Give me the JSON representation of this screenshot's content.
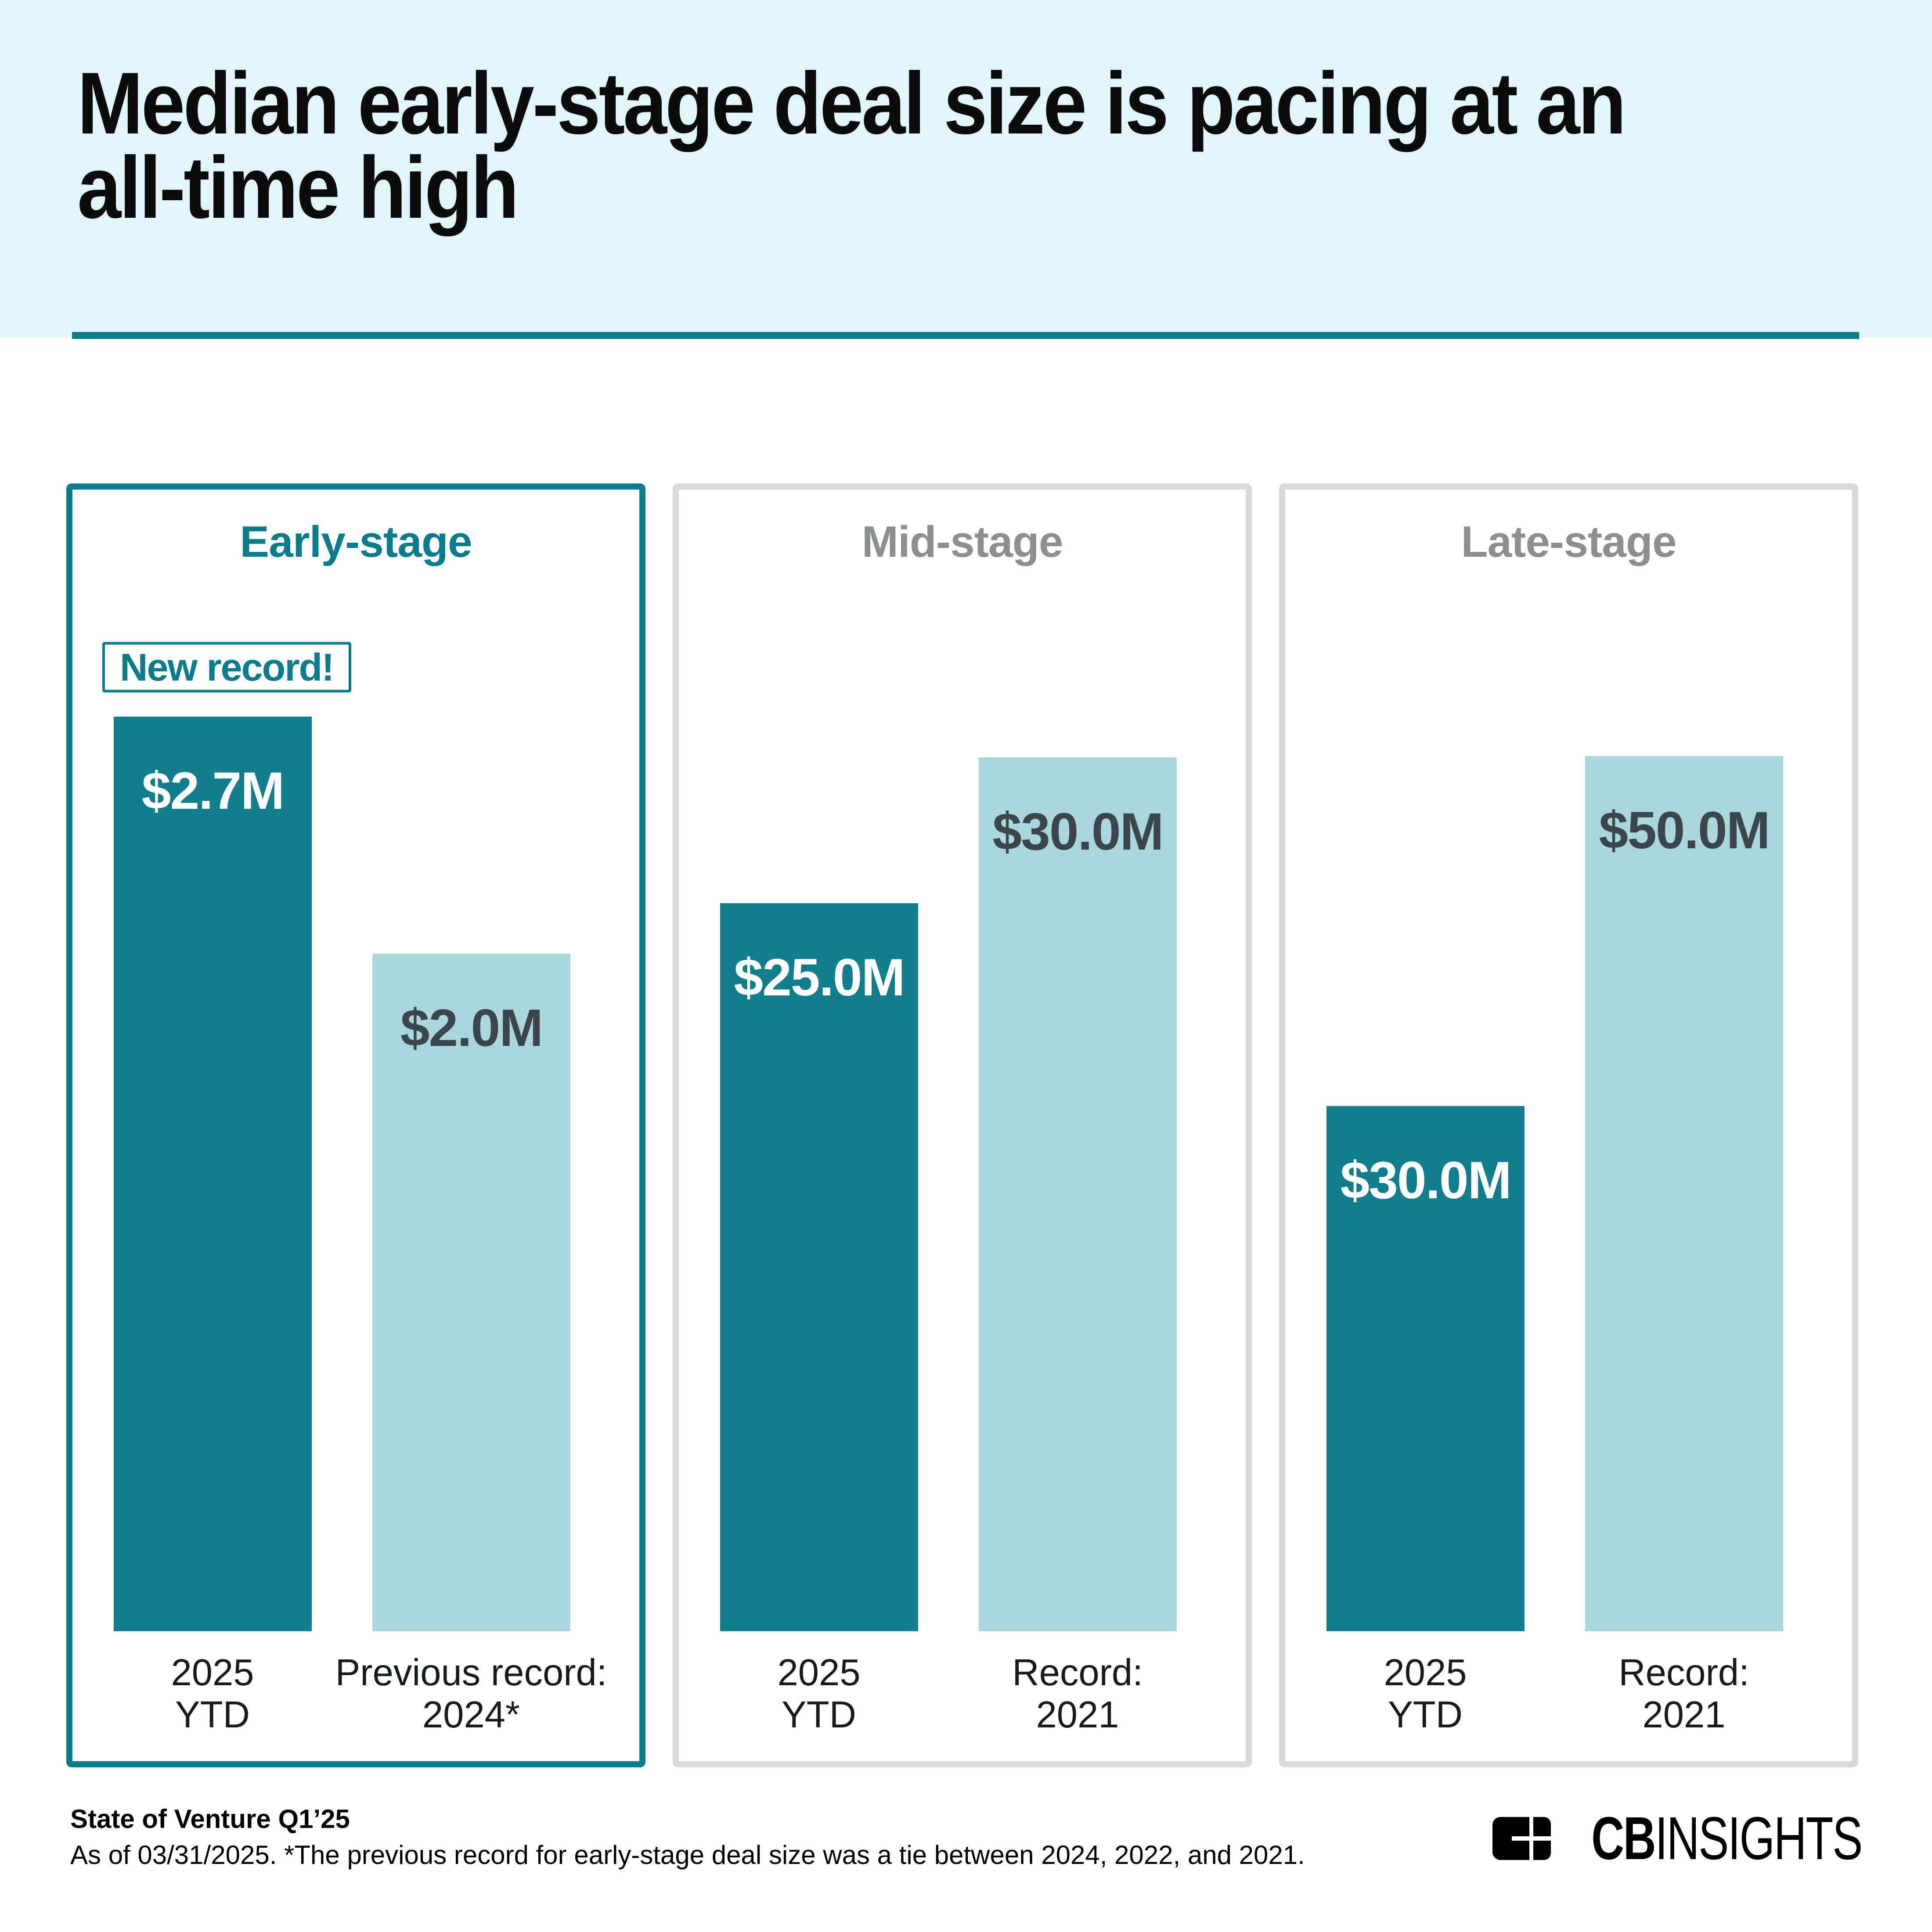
{
  "header": {
    "title": "Median early-stage deal size is pacing at an all-time high",
    "title_line1": "Median early-stage deal size is pacing at an",
    "title_line2": "all-time high"
  },
  "panels": [
    {
      "title": "Early-stage",
      "highlighted": true,
      "badge": "New record!",
      "bars": [
        {
          "value": 2.7,
          "value_label": "$2.7M",
          "variant": "dark",
          "axis_line1": "2025",
          "axis_line2": "YTD"
        },
        {
          "value": 2.0,
          "value_label": "$2.0M",
          "variant": "light",
          "axis_line1": "Previous record:",
          "axis_line2": "2024*"
        }
      ]
    },
    {
      "title": "Mid-stage",
      "highlighted": false,
      "badge": "",
      "bars": [
        {
          "value": 25.0,
          "value_label": "$25.0M",
          "variant": "dark",
          "axis_line1": "2025",
          "axis_line2": "YTD"
        },
        {
          "value": 30.0,
          "value_label": "$30.0M",
          "variant": "light",
          "axis_line1": "Record:",
          "axis_line2": "2021"
        }
      ]
    },
    {
      "title": "Late-stage",
      "highlighted": false,
      "badge": "",
      "bars": [
        {
          "value": 30.0,
          "value_label": "$30.0M",
          "variant": "dark",
          "axis_line1": "2025",
          "axis_line2": "YTD"
        },
        {
          "value": 50.0,
          "value_label": "$50.0M",
          "variant": "light",
          "axis_line1": "Record:",
          "axis_line2": "2021"
        }
      ]
    }
  ],
  "footer": {
    "source": "State of Venture Q1’25",
    "note": "As of 03/31/2025. *The previous record for early-stage deal size was a tie between 2024, 2022, and 2021.",
    "logo_cb": "CB",
    "logo_insights": "INSIGHTS"
  },
  "colors": {
    "accent_teal": "#0B7C8C",
    "bar_dark": "#117E8D",
    "bar_light": "#AAD6DE",
    "header_band": "#E2F5FB",
    "panel_border_gray": "#D8D8D8",
    "muted_title_gray": "#8B8F92",
    "light_bar_label": "#3B454C"
  },
  "chart_data": [
    {
      "type": "bar",
      "title": "Early-stage",
      "categories": [
        "2025 YTD",
        "Previous record: 2024*"
      ],
      "values": [
        2.7,
        2.0
      ],
      "data_labels": [
        "$2.7M",
        "$2.0M"
      ],
      "unit": "USD millions (median deal size)",
      "annotation": "New record!",
      "legend_position": "none",
      "grid": false
    },
    {
      "type": "bar",
      "title": "Mid-stage",
      "categories": [
        "2025 YTD",
        "Record: 2021"
      ],
      "values": [
        25.0,
        30.0
      ],
      "data_labels": [
        "$25.0M",
        "$30.0M"
      ],
      "unit": "USD millions (median deal size)",
      "legend_position": "none",
      "grid": false
    },
    {
      "type": "bar",
      "title": "Late-stage",
      "categories": [
        "2025 YTD",
        "Record: 2021"
      ],
      "values": [
        30.0,
        50.0
      ],
      "data_labels": [
        "$30.0M",
        "$50.0M"
      ],
      "unit": "USD millions (median deal size)",
      "legend_position": "none",
      "grid": false
    }
  ]
}
